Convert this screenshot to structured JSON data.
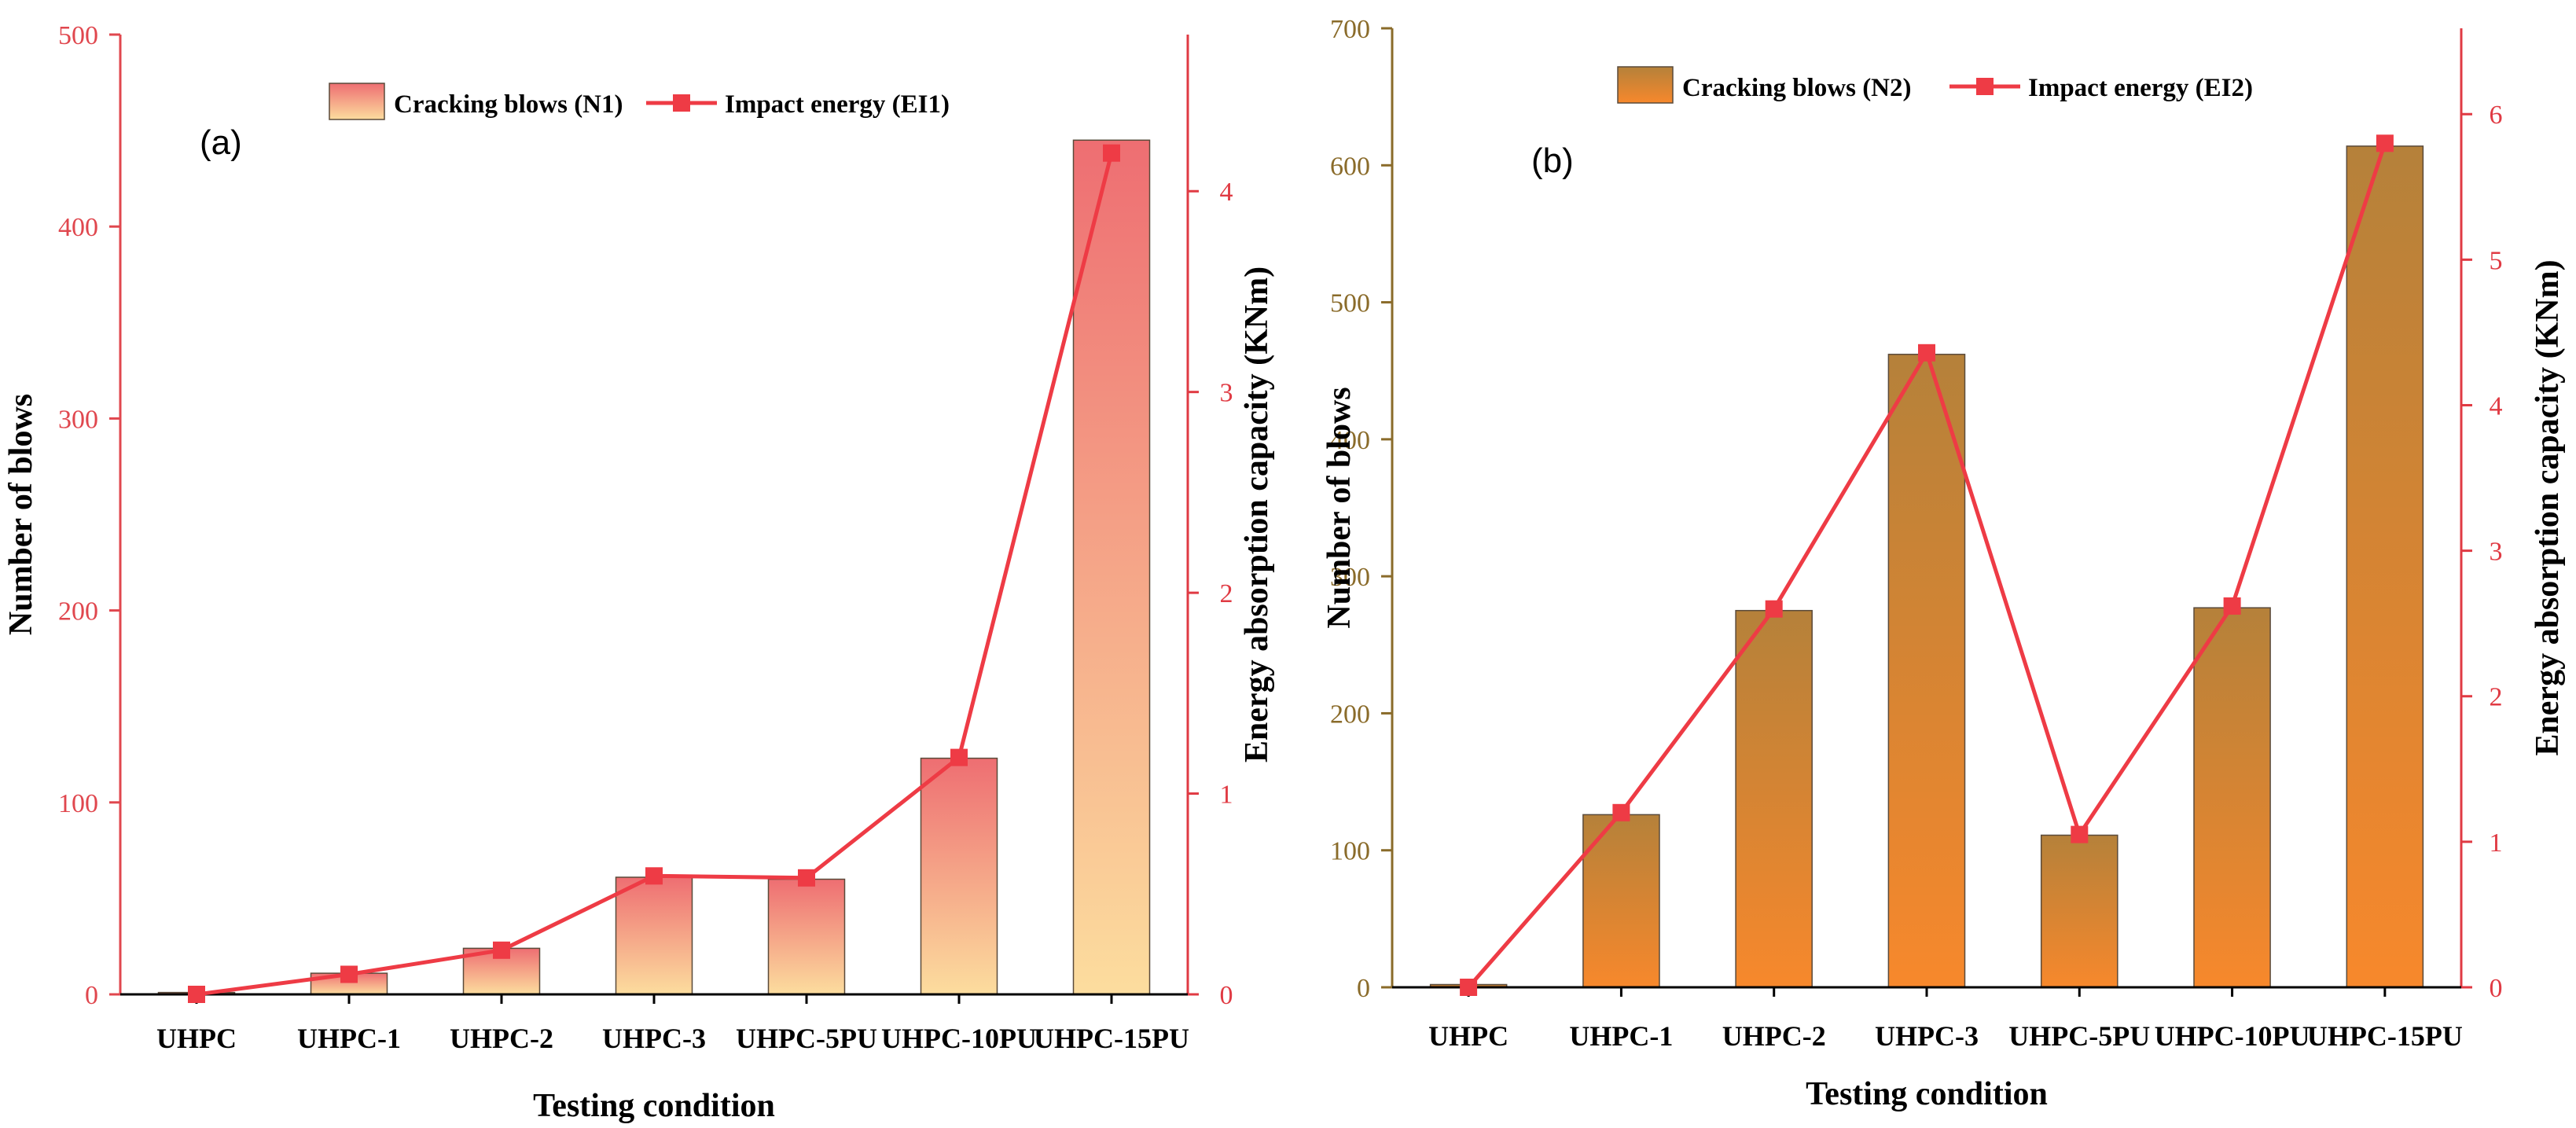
{
  "chart_data": [
    {
      "type": "bar",
      "panel_label": "(a)",
      "categories": [
        "UHPC",
        "UHPC-1",
        "UHPC-2",
        "UHPC-3",
        "UHPC-5PU",
        "UHPC-10PU",
        "UHPC-15PU"
      ],
      "series": [
        {
          "name": "Cracking blows (N1)",
          "type": "bar",
          "axis": "left",
          "values": [
            1,
            11,
            24,
            61,
            60,
            123,
            445
          ]
        },
        {
          "name": "Impact energy (EI1)",
          "type": "line",
          "axis": "right",
          "values": [
            0.0,
            0.1,
            0.22,
            0.59,
            0.58,
            1.18,
            4.19
          ]
        }
      ],
      "xlabel": "Testing condition",
      "ylabel": "Number of blows",
      "ylabel_right": "Energy absorption capacity (KNm)",
      "ylim": [
        0,
        500
      ],
      "yticks": [
        "0",
        "100",
        "200",
        "300",
        "400",
        "500"
      ],
      "ylim_right": [
        0,
        4.78
      ],
      "yticks_right": [
        "0",
        "1",
        "2",
        "3",
        "4"
      ],
      "legend_position": "top-center",
      "colors": {
        "bar_top": "#EE6E72",
        "bar_bottom": "#FCDD9E",
        "line": "#EE3B45",
        "left_axis": "#E0474E",
        "right_axis": "#E03A43"
      }
    },
    {
      "type": "bar",
      "panel_label": "(b)",
      "categories": [
        "UHPC",
        "UHPC-1",
        "UHPC-2",
        "UHPC-3",
        "UHPC-5PU",
        "UHPC-10PU",
        "UHPC-15PU"
      ],
      "series": [
        {
          "name": "Cracking blows (N2)",
          "type": "bar",
          "axis": "left",
          "values": [
            2,
            126,
            275,
            462,
            111,
            277,
            614
          ]
        },
        {
          "name": "Impact energy (EI2)",
          "type": "line",
          "axis": "right",
          "values": [
            0.0,
            1.2,
            2.6,
            4.36,
            1.05,
            2.62,
            5.8
          ]
        }
      ],
      "xlabel": "Testing condition",
      "ylabel": "Number of blows",
      "ylabel_right": "Energy absorption capacity (KNm)",
      "ylim": [
        0,
        700
      ],
      "yticks": [
        "0",
        "100",
        "200",
        "300",
        "400",
        "500",
        "600",
        "700"
      ],
      "ylim_right": [
        0,
        6.59
      ],
      "yticks_right": [
        "0",
        "1",
        "2",
        "3",
        "4",
        "5",
        "6"
      ],
      "legend_position": "top-center",
      "colors": {
        "bar_top": "#B5813A",
        "bar_bottom": "#F7882C",
        "line": "#EE3B45",
        "left_axis": "#8A6B2A",
        "right_axis": "#E03A43"
      }
    }
  ]
}
